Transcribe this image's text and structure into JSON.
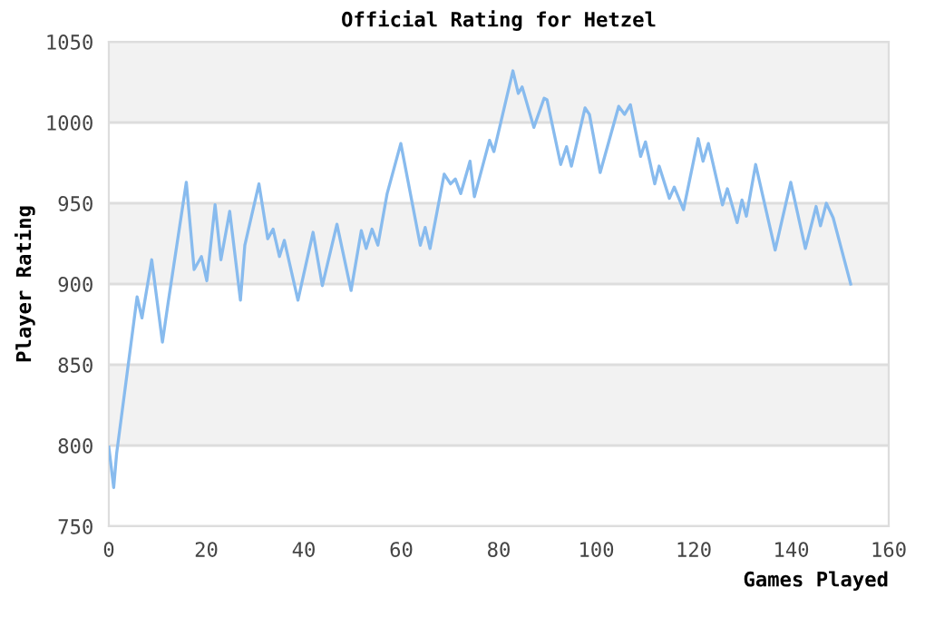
{
  "chart_data": {
    "type": "line",
    "title": "Official Rating for Hetzel",
    "xlabel": "Games Played",
    "ylabel": "Player Rating",
    "series": [
      {
        "color": "#88bbee",
        "x": [
          0,
          1,
          1.6,
          5.8,
          6.8,
          8.8,
          11,
          12.2,
          15.9,
          17.5,
          19,
          20.1,
          21.8,
          23,
          24.8,
          27,
          27.9,
          30.8,
          32.6,
          33.7,
          35,
          36,
          38.8,
          41.9,
          43.8,
          46.8,
          49.7,
          51.8,
          52.8,
          54,
          55.2,
          57.1,
          59.9,
          63.9,
          64.9,
          65.9,
          68.8,
          70.1,
          71.1,
          72.2,
          74.1,
          75,
          78.1,
          79,
          82.9,
          84,
          84.8,
          87.2,
          89.3,
          89.9,
          92.7,
          93.9,
          94.9,
          97.7,
          98.6,
          100.8,
          104.6,
          105.8,
          107,
          109.1,
          110.1,
          112,
          112.9,
          115,
          116,
          117.9,
          120.9,
          121.9,
          123,
          125.9,
          126.9,
          128.9,
          129.9,
          130.8,
          132.7,
          136.7,
          139.9,
          142.9,
          145.1,
          146,
          147.2,
          148.6,
          152.2
        ],
        "values": [
          799,
          774,
          795,
          892,
          879,
          915,
          864,
          889,
          963,
          909,
          917,
          902,
          949,
          915,
          945,
          890,
          924,
          962,
          928,
          934,
          917,
          927,
          890,
          932,
          899,
          937,
          896,
          933,
          922,
          934,
          924,
          956,
          987,
          924,
          935,
          922,
          968,
          962,
          965,
          956,
          976,
          954,
          989,
          982,
          1032,
          1018,
          1022,
          997,
          1015,
          1014,
          974,
          985,
          973,
          1009,
          1005,
          969,
          1010,
          1005,
          1011,
          979,
          988,
          962,
          973,
          953,
          960,
          946,
          990,
          976,
          987,
          949,
          959,
          938,
          952,
          942,
          974,
          921,
          963,
          922,
          948,
          936,
          950,
          941,
          900
        ]
      }
    ],
    "xlim": [
      0,
      160
    ],
    "xticks": [
      0,
      20,
      40,
      60,
      80,
      100,
      120,
      140,
      160
    ],
    "ylim": [
      750,
      1050
    ],
    "yticks": [
      750,
      800,
      850,
      900,
      950,
      1000,
      1050
    ],
    "grid": "y",
    "marker": "none",
    "line_style": "solid",
    "bands": [
      {
        "axis": "y",
        "from": 800,
        "to": 850,
        "color": "#f2f2f2"
      },
      {
        "axis": "y",
        "from": 900,
        "to": 950,
        "color": "#f2f2f2"
      },
      {
        "axis": "y",
        "from": 1000,
        "to": 1050,
        "color": "#f2f2f2"
      }
    ]
  }
}
